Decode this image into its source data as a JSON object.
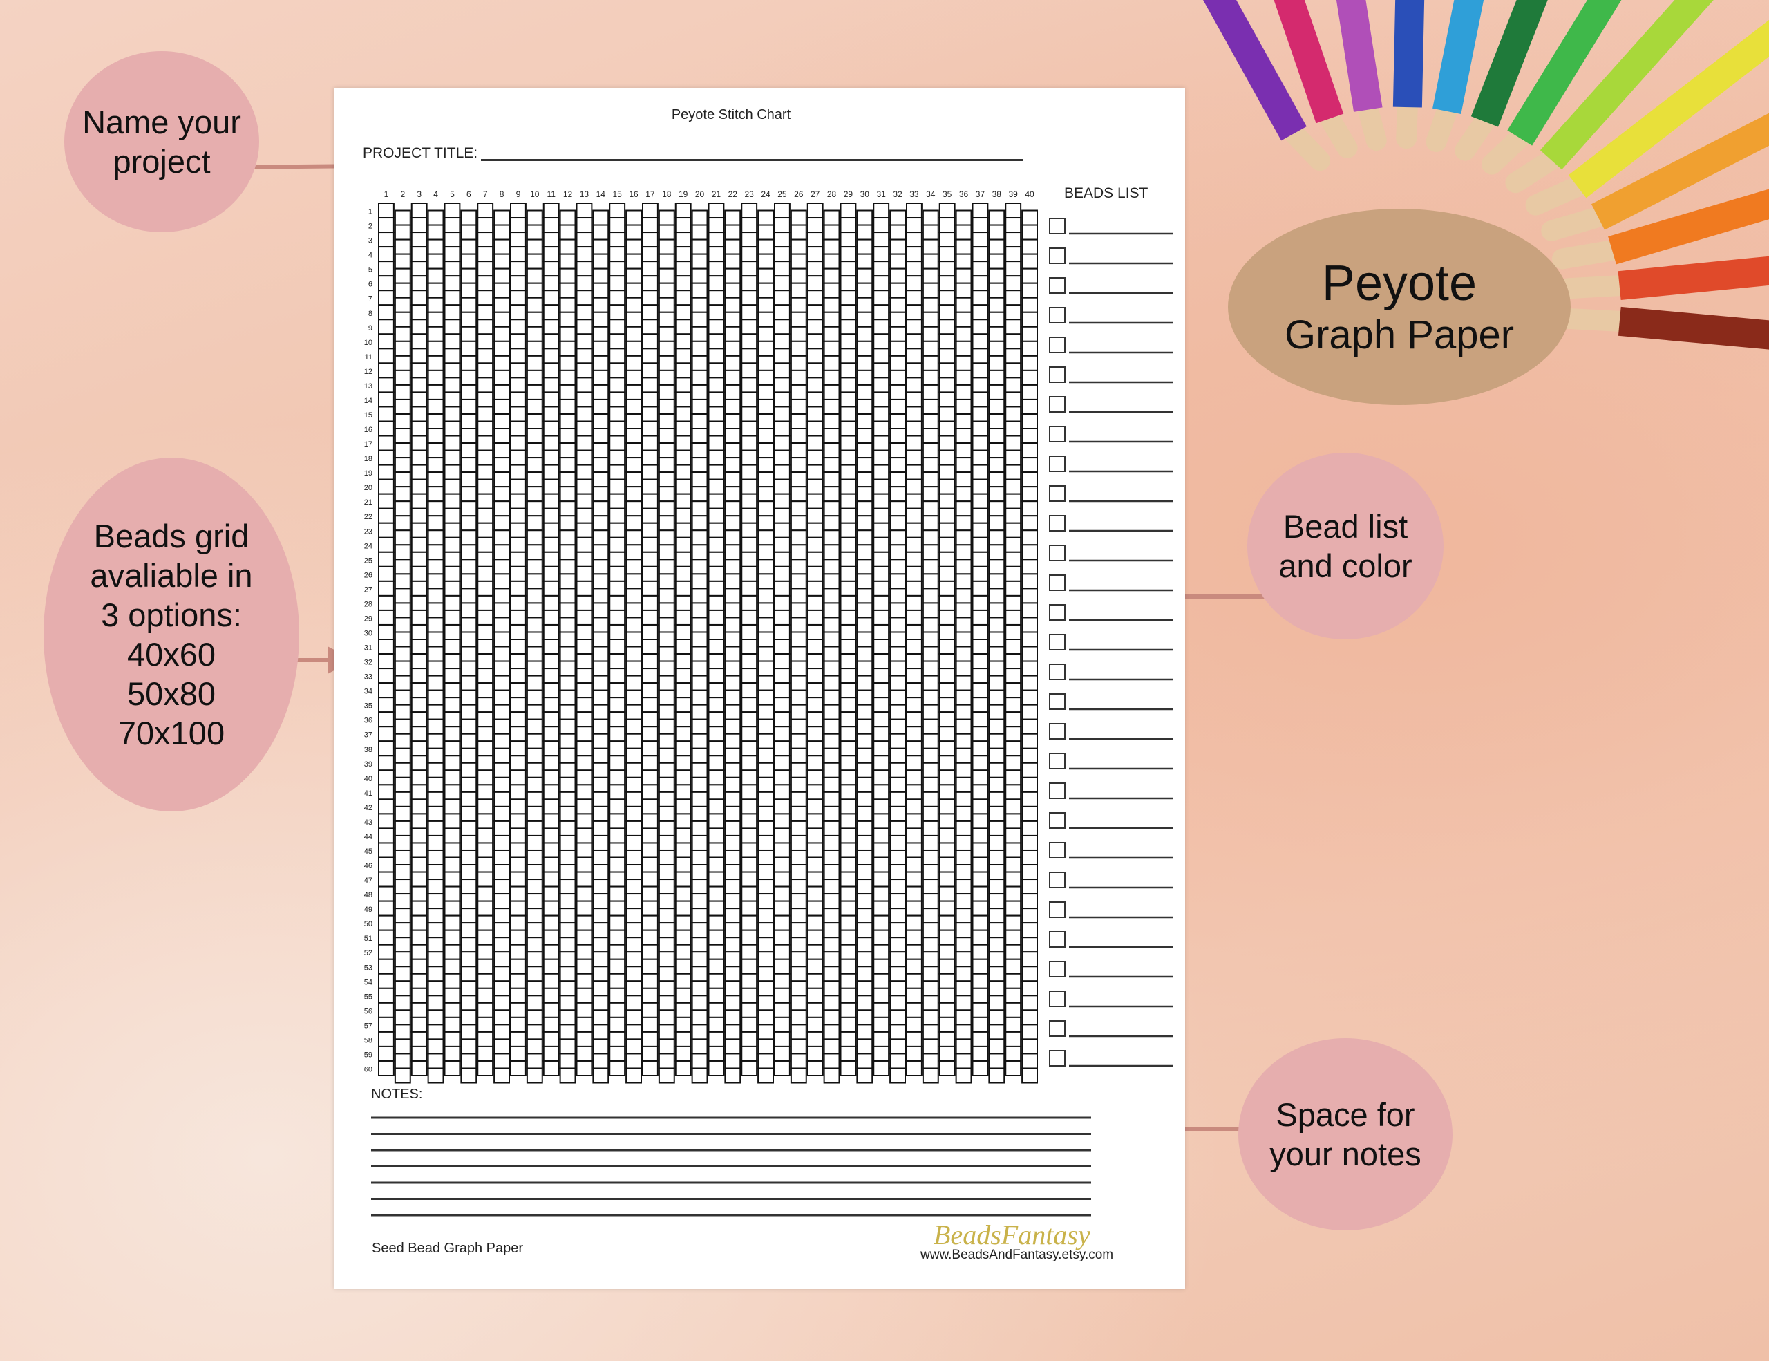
{
  "paper": {
    "title": "Peyote Stitch Chart",
    "project_title_label": "PROJECT TITLE:",
    "beads_list_label": "BEADS LIST",
    "notes_label": "NOTES:",
    "footer_left": "Seed Bead Graph Paper",
    "logo_text": "BeadsFantasy",
    "footer_url": "www.BeadsAndFantasy.etsy.com",
    "grid_columns": 40,
    "grid_rows": 60,
    "beads_list_count": 29,
    "notes_lines": 7
  },
  "callouts": {
    "name_project": [
      "Name your",
      "project"
    ],
    "grid_options": [
      "Beads grid",
      "avaliable in",
      "3 options:",
      "40x60",
      "50x80",
      "70x100"
    ],
    "headline": [
      "Peyote",
      "Graph Paper"
    ],
    "bead_list": [
      "Bead list",
      "and color"
    ],
    "notes": [
      "Space for",
      "your notes"
    ]
  },
  "colors": {
    "bubble": "#e6aeae",
    "headline_bubble": "#c9a27e",
    "arrow": "#c98a7e",
    "logo": "#c9b24a"
  },
  "pencil_colors": [
    "#7a2fb0",
    "#d42a6e",
    "#b04fb8",
    "#2a4fb8",
    "#2f9fd8",
    "#1f7a3a",
    "#3fb84a",
    "#a8d83a",
    "#e8e03a",
    "#f0a030",
    "#f07a20",
    "#e04a2a",
    "#8a2a1a"
  ]
}
